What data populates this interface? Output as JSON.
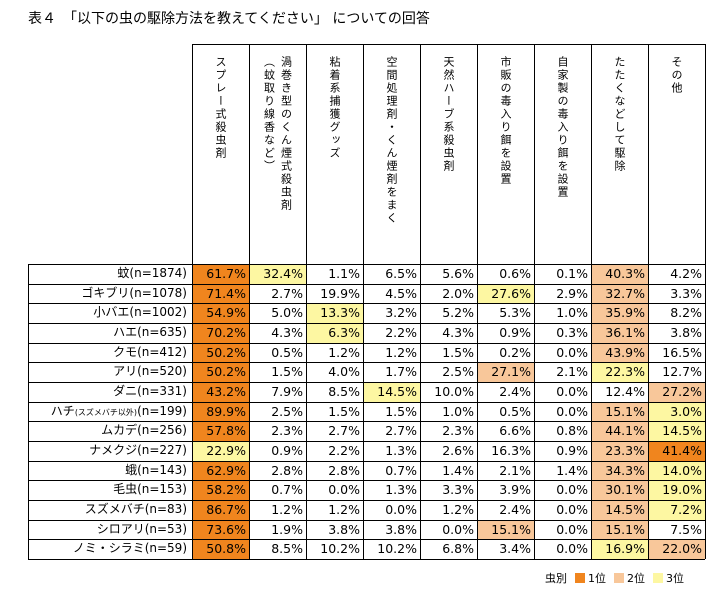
{
  "title": "表４　「以下の虫の駆除方法を教えてください」 についての回答",
  "chart_data": {
    "type": "table",
    "columns": [
      "スプレー式殺虫剤",
      "渦巻き型のくん煙式殺虫剤（蚊取り線香など）",
      "粘着系捕獲グッズ",
      "空間処理剤・くん煙剤をまく",
      "天然ハーブ系殺虫剤",
      "市販の毒入り餌を設置",
      "自家製の毒入り餌を設置",
      "たたくなどして駆除",
      "その他"
    ],
    "rows": [
      {
        "label": "蚊(n=1874)",
        "values": [
          "61.7%",
          "32.4%",
          "1.1%",
          "6.5%",
          "5.6%",
          "0.6%",
          "0.1%",
          "40.3%",
          "4.2%"
        ],
        "ranks": [
          1,
          3,
          0,
          0,
          0,
          0,
          0,
          2,
          0
        ]
      },
      {
        "label": "ゴキブリ(n=1078)",
        "values": [
          "71.4%",
          "2.7%",
          "19.9%",
          "4.5%",
          "2.0%",
          "27.6%",
          "2.9%",
          "32.7%",
          "3.3%"
        ],
        "ranks": [
          1,
          0,
          0,
          0,
          0,
          3,
          0,
          2,
          0
        ]
      },
      {
        "label": "小バエ(n=1002)",
        "values": [
          "54.9%",
          "5.0%",
          "13.3%",
          "3.2%",
          "5.2%",
          "5.3%",
          "1.0%",
          "35.9%",
          "8.2%"
        ],
        "ranks": [
          1,
          0,
          3,
          0,
          0,
          0,
          0,
          2,
          0
        ]
      },
      {
        "label": "ハエ(n=635)",
        "values": [
          "70.2%",
          "4.3%",
          "6.3%",
          "2.2%",
          "4.3%",
          "0.9%",
          "0.3%",
          "36.1%",
          "3.8%"
        ],
        "ranks": [
          1,
          0,
          3,
          0,
          0,
          0,
          0,
          2,
          0
        ]
      },
      {
        "label": "クモ(n=412)",
        "values": [
          "50.2%",
          "0.5%",
          "1.2%",
          "1.2%",
          "1.5%",
          "0.2%",
          "0.0%",
          "43.9%",
          "16.5%"
        ],
        "ranks": [
          1,
          0,
          0,
          0,
          0,
          0,
          0,
          2,
          0
        ]
      },
      {
        "label": "アリ(n=520)",
        "values": [
          "50.2%",
          "1.5%",
          "4.0%",
          "1.7%",
          "2.5%",
          "27.1%",
          "2.1%",
          "22.3%",
          "12.7%"
        ],
        "ranks": [
          1,
          0,
          0,
          0,
          0,
          2,
          0,
          3,
          0
        ]
      },
      {
        "label": "ダニ(n=331)",
        "values": [
          "43.2%",
          "7.9%",
          "8.5%",
          "14.5%",
          "10.0%",
          "2.4%",
          "0.0%",
          "12.4%",
          "27.2%"
        ],
        "ranks": [
          1,
          0,
          0,
          3,
          0,
          0,
          0,
          0,
          2
        ]
      },
      {
        "label": "ハチ",
        "label_note": "(スズメバチ以外)",
        "label_n": "(n=199)",
        "values": [
          "89.9%",
          "2.5%",
          "1.5%",
          "1.5%",
          "1.0%",
          "0.5%",
          "0.0%",
          "15.1%",
          "3.0%"
        ],
        "ranks": [
          1,
          0,
          0,
          0,
          0,
          0,
          0,
          2,
          3
        ]
      },
      {
        "label": "ムカデ(n=256)",
        "values": [
          "57.8%",
          "2.3%",
          "2.7%",
          "2.7%",
          "2.3%",
          "6.6%",
          "0.8%",
          "44.1%",
          "14.5%"
        ],
        "ranks": [
          1,
          0,
          0,
          0,
          0,
          0,
          0,
          2,
          3
        ]
      },
      {
        "label": "ナメクジ(n=227)",
        "values": [
          "22.9%",
          "0.9%",
          "2.2%",
          "1.3%",
          "2.6%",
          "16.3%",
          "0.9%",
          "23.3%",
          "41.4%"
        ],
        "ranks": [
          3,
          0,
          0,
          0,
          0,
          0,
          0,
          2,
          1
        ]
      },
      {
        "label": "蛾(n=143)",
        "values": [
          "62.9%",
          "2.8%",
          "2.8%",
          "0.7%",
          "1.4%",
          "2.1%",
          "1.4%",
          "34.3%",
          "14.0%"
        ],
        "ranks": [
          1,
          0,
          0,
          0,
          0,
          0,
          0,
          2,
          3
        ]
      },
      {
        "label": "毛虫(n=153)",
        "values": [
          "58.2%",
          "0.7%",
          "0.0%",
          "1.3%",
          "3.3%",
          "3.9%",
          "0.0%",
          "30.1%",
          "19.0%"
        ],
        "ranks": [
          1,
          0,
          0,
          0,
          0,
          0,
          0,
          2,
          3
        ]
      },
      {
        "label": "スズメバチ(n=83)",
        "values": [
          "86.7%",
          "1.2%",
          "1.2%",
          "0.0%",
          "1.2%",
          "2.4%",
          "0.0%",
          "14.5%",
          "7.2%"
        ],
        "ranks": [
          1,
          0,
          0,
          0,
          0,
          0,
          0,
          2,
          3
        ]
      },
      {
        "label": "シロアリ(n=53)",
        "values": [
          "73.6%",
          "1.9%",
          "3.8%",
          "3.8%",
          "0.0%",
          "15.1%",
          "0.0%",
          "15.1%",
          "7.5%"
        ],
        "ranks": [
          1,
          0,
          0,
          0,
          0,
          2,
          0,
          2,
          0
        ]
      },
      {
        "label": "ノミ・シラミ(n=59)",
        "values": [
          "50.8%",
          "8.5%",
          "10.2%",
          "10.2%",
          "6.8%",
          "3.4%",
          "0.0%",
          "16.9%",
          "22.0%"
        ],
        "ranks": [
          1,
          0,
          0,
          0,
          0,
          0,
          0,
          3,
          2
        ]
      }
    ],
    "legend": {
      "title": "虫別",
      "items": [
        {
          "label": "1位",
          "color": "#f0851e"
        },
        {
          "label": "2位",
          "color": "#f8c79a"
        },
        {
          "label": "3位",
          "color": "#fdf7a2"
        }
      ]
    }
  }
}
